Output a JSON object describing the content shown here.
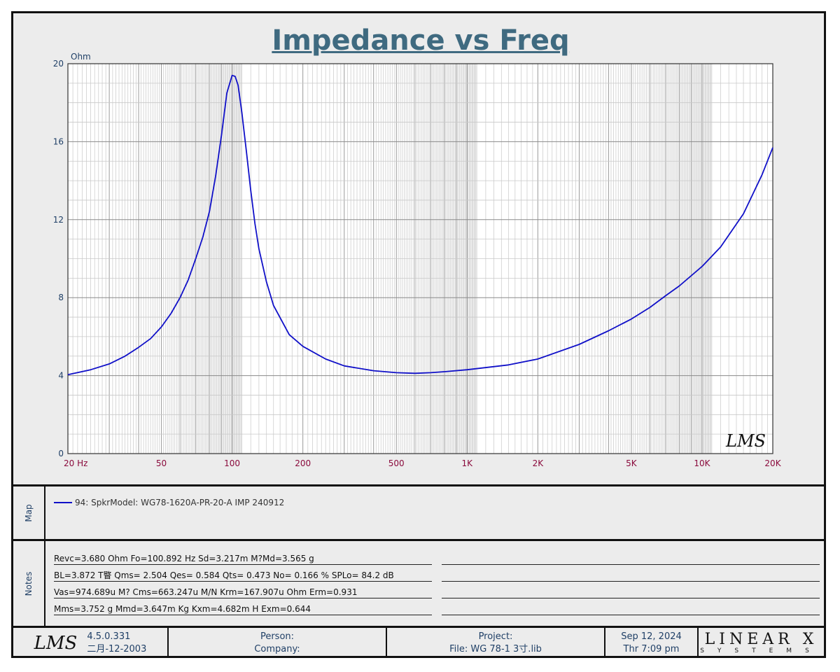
{
  "chart_data": {
    "type": "line",
    "title": "Impedance vs Freq",
    "ylabel": "Ohm",
    "xscale": "log",
    "xlim": [
      20,
      20000
    ],
    "ylim": [
      0,
      20
    ],
    "grid": true,
    "y_ticks": [
      "0",
      "4",
      "8",
      "12",
      "16",
      "20"
    ],
    "x_ticks": [
      {
        "value": 20,
        "label": "20  Hz"
      },
      {
        "value": 50,
        "label": "50"
      },
      {
        "value": 100,
        "label": "100"
      },
      {
        "value": 200,
        "label": "200"
      },
      {
        "value": 500,
        "label": "500"
      },
      {
        "value": 1000,
        "label": "1K"
      },
      {
        "value": 2000,
        "label": "2K"
      },
      {
        "value": 5000,
        "label": "5K"
      },
      {
        "value": 10000,
        "label": "10K"
      },
      {
        "value": 20000,
        "label": "20K"
      }
    ],
    "series": [
      {
        "name": "94: SpkrModel: WG78-1620A-PR-20-A IMP 240912",
        "color": "#1010c8",
        "points": [
          [
            20,
            4.05
          ],
          [
            25,
            4.3
          ],
          [
            30,
            4.6
          ],
          [
            35,
            5.0
          ],
          [
            40,
            5.45
          ],
          [
            45,
            5.9
          ],
          [
            50,
            6.5
          ],
          [
            55,
            7.2
          ],
          [
            60,
            8.0
          ],
          [
            65,
            8.9
          ],
          [
            70,
            10.0
          ],
          [
            75,
            11.1
          ],
          [
            80,
            12.4
          ],
          [
            85,
            14.2
          ],
          [
            90,
            16.3
          ],
          [
            95,
            18.5
          ],
          [
            100,
            19.4
          ],
          [
            103,
            19.35
          ],
          [
            106,
            18.9
          ],
          [
            110,
            17.5
          ],
          [
            115,
            15.5
          ],
          [
            120,
            13.5
          ],
          [
            125,
            11.8
          ],
          [
            130,
            10.5
          ],
          [
            140,
            8.8
          ],
          [
            150,
            7.6
          ],
          [
            175,
            6.1
          ],
          [
            200,
            5.5
          ],
          [
            250,
            4.85
          ],
          [
            300,
            4.5
          ],
          [
            400,
            4.25
          ],
          [
            500,
            4.15
          ],
          [
            600,
            4.12
          ],
          [
            700,
            4.15
          ],
          [
            800,
            4.2
          ],
          [
            1000,
            4.3
          ],
          [
            1500,
            4.55
          ],
          [
            2000,
            4.85
          ],
          [
            3000,
            5.6
          ],
          [
            4000,
            6.3
          ],
          [
            5000,
            6.9
          ],
          [
            6000,
            7.5
          ],
          [
            7000,
            8.1
          ],
          [
            8000,
            8.6
          ],
          [
            10000,
            9.6
          ],
          [
            12000,
            10.6
          ],
          [
            15000,
            12.3
          ],
          [
            18000,
            14.3
          ],
          [
            20000,
            15.7
          ]
        ]
      }
    ]
  },
  "watermark": "LMS",
  "map_label": "Map",
  "notes_label": "Notes",
  "legend": {
    "entry": "94: SpkrModel: WG78-1620A-PR-20-A IMP 240912",
    "color": "#1010c8"
  },
  "notes": [
    "Revc=3.680 Ohm  Fo=100.892 Hz  Sd=3.217m M?Md=3.565 g",
    "BL=3.872 T睯  Qms= 2.504  Qes= 0.584  Qts= 0.473  No= 0.166 %  SPLo= 84.2 dB",
    "Vas=974.689u M? Cms=663.247u M/N  Krm=167.907u Ohm  Erm=0.931",
    "Mms=3.752 g  Mmd=3.647m Kg  Kxm=4.682m H  Exm=0.644"
  ],
  "footer": {
    "logo": "LMS",
    "version": "4.5.0.331",
    "version_date": "二月-12-2003",
    "person": "Person:",
    "company": "Company:",
    "project": "Project:",
    "file": "File: WG 78-1 3寸.lib",
    "date": "Sep 12, 2024",
    "time": "Thr  7:09 pm",
    "brand": "LINEAR X",
    "brand_sub": "SYSTEMS"
  },
  "colors": {
    "title": "#3f6a80",
    "axis_label": "#1f3f66",
    "x_tick": "#8a0a3c",
    "curve": "#1010c8"
  }
}
